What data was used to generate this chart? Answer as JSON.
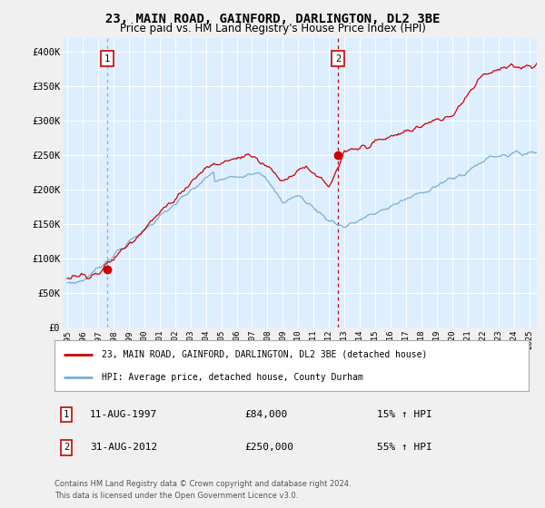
{
  "title": "23, MAIN ROAD, GAINFORD, DARLINGTON, DL2 3BE",
  "subtitle": "Price paid vs. HM Land Registry's House Price Index (HPI)",
  "title_fontsize": 10,
  "subtitle_fontsize": 8.5,
  "fig_bg_color": "#f0f0f0",
  "bg_color": "#ddeeff",
  "grid_color": "#ffffff",
  "red_line_color": "#cc0000",
  "blue_line_color": "#7aaed6",
  "sale1_x": 1997.58,
  "sale1_price": 84000,
  "sale2_x": 2012.58,
  "sale2_price": 250000,
  "vline1_color": "#aaaaaa",
  "vline2_color": "#cc0000",
  "ylim": [
    0,
    420000
  ],
  "xlim": [
    1994.7,
    2025.5
  ],
  "yticks": [
    0,
    50000,
    100000,
    150000,
    200000,
    250000,
    300000,
    350000,
    400000
  ],
  "ytick_labels": [
    "£0",
    "£50K",
    "£100K",
    "£150K",
    "£200K",
    "£250K",
    "£300K",
    "£350K",
    "£400K"
  ],
  "xticks": [
    1995,
    1996,
    1997,
    1998,
    1999,
    2000,
    2001,
    2002,
    2003,
    2004,
    2005,
    2006,
    2007,
    2008,
    2009,
    2010,
    2011,
    2012,
    2013,
    2014,
    2015,
    2016,
    2017,
    2018,
    2019,
    2020,
    2021,
    2022,
    2023,
    2024,
    2025
  ],
  "legend_label_red": "23, MAIN ROAD, GAINFORD, DARLINGTON, DL2 3BE (detached house)",
  "legend_label_blue": "HPI: Average price, detached house, County Durham",
  "annotation1_date": "11-AUG-1997",
  "annotation1_price": "£84,000",
  "annotation1_hpi": "15% ↑ HPI",
  "annotation2_date": "31-AUG-2012",
  "annotation2_price": "£250,000",
  "annotation2_hpi": "55% ↑ HPI",
  "footnote_line1": "Contains HM Land Registry data © Crown copyright and database right 2024.",
  "footnote_line2": "This data is licensed under the Open Government Licence v3.0."
}
